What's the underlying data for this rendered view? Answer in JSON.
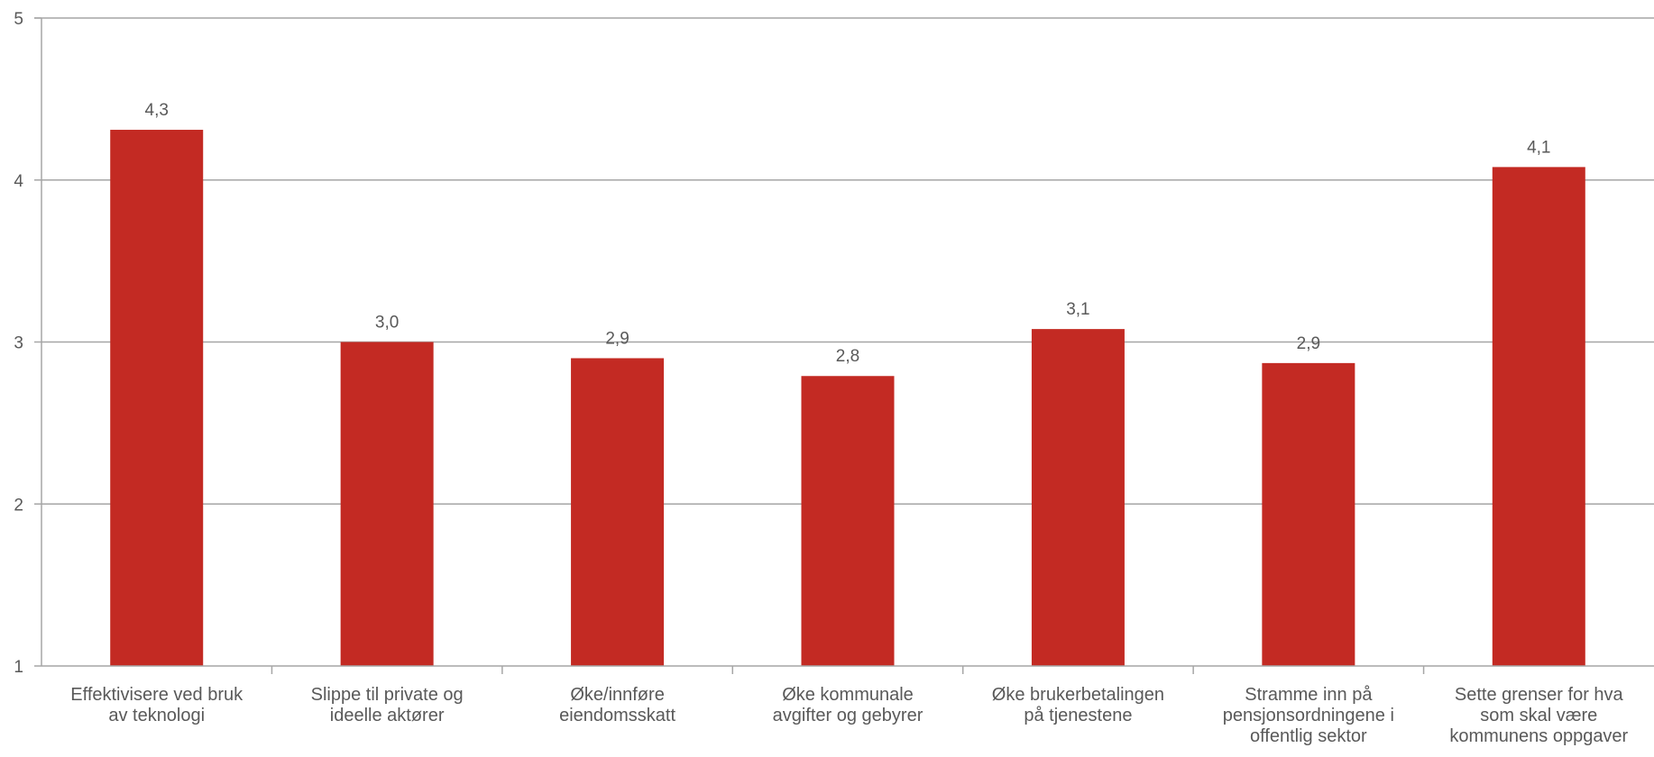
{
  "chart_data": {
    "type": "bar",
    "title": "",
    "xlabel": "",
    "ylabel": "",
    "ylim": [
      1,
      5
    ],
    "yticks": [
      1,
      2,
      3,
      4,
      5
    ],
    "grid": true,
    "legend": "none",
    "bar_color": "#c32a23",
    "categories": [
      [
        "Effektivisere ved bruk",
        "av teknologi"
      ],
      [
        "Slippe til private og",
        "ideelle aktører"
      ],
      [
        "Øke/innføre",
        "eiendomsskatt"
      ],
      [
        "Øke kommunale",
        "avgifter og gebyrer"
      ],
      [
        "Øke brukerbetalingen",
        "på tjenestene"
      ],
      [
        "Stramme inn på",
        "pensjonsordningene i",
        "offentlig sektor"
      ],
      [
        "Sette grenser for hva",
        "som skal være",
        "kommunens oppgaver"
      ]
    ],
    "values": [
      4.31,
      3.0,
      2.9,
      2.79,
      3.08,
      2.87,
      4.08
    ],
    "data_labels": [
      "4,3",
      "3,0",
      "2,9",
      "2,8",
      "3,1",
      "2,9",
      "4,1"
    ]
  }
}
